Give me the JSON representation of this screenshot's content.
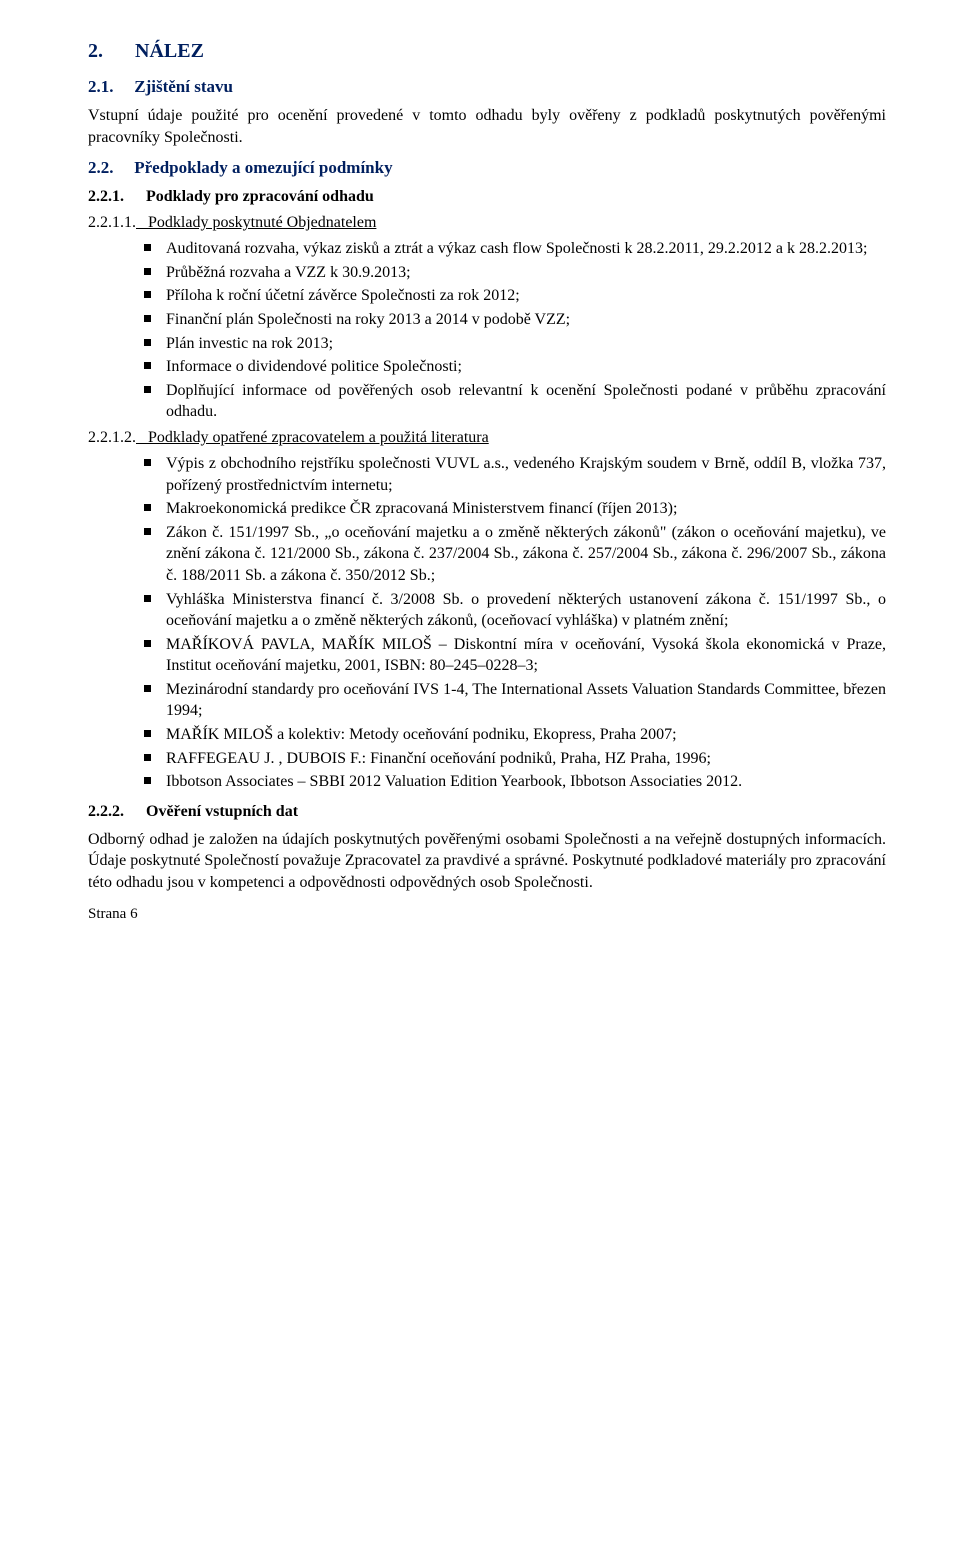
{
  "colors": {
    "heading_navy": "#001f5f",
    "body_text": "#000000",
    "background": "#ffffff",
    "bullet": "#000000"
  },
  "typography": {
    "body_fontsize_pt": 12,
    "h1_fontsize_pt": 15,
    "h2_fontsize_pt": 13,
    "font_family": "Garamond/serif"
  },
  "s2": {
    "num": "2.",
    "title": "NÁLEZ"
  },
  "s21": {
    "num": "2.1.",
    "title": "Zjištění stavu",
    "para": "Vstupní údaje použité pro ocenění provedené v tomto odhadu byly ověřeny z podkladů poskytnutých pověřenými pracovníky Společnosti."
  },
  "s22": {
    "num": "2.2.",
    "title": "Předpoklady a omezující podmínky"
  },
  "s221": {
    "num": "2.2.1.",
    "title": "Podklady pro zpracování odhadu"
  },
  "s2211": {
    "num": "2.2.1.1.",
    "title": "Podklady poskytnuté Objednatelem",
    "items": [
      "Auditovaná rozvaha, výkaz zisků a ztrát a výkaz cash flow Společnosti k 28.2.2011, 29.2.2012 a k 28.2.2013;",
      "Průběžná rozvaha a VZZ k 30.9.2013;",
      "Příloha k roční účetní závěrce Společnosti za rok 2012;",
      "Finanční plán Společnosti na roky 2013 a 2014 v podobě VZZ;",
      "Plán investic na rok 2013;",
      "Informace o dividendové politice Společnosti;",
      "Doplňující informace od pověřených osob relevantní k ocenění Společnosti podané v průběhu zpracování odhadu."
    ]
  },
  "s2212": {
    "num": "2.2.1.2.",
    "title": "Podklady opatřené zpracovatelem a použitá literatura",
    "items": [
      "Výpis z obchodního rejstříku společnosti VUVL a.s., vedeného Krajským soudem v Brně, oddíl B, vložka 737, pořízený prostřednictvím internetu;",
      "Makroekonomická predikce ČR zpracovaná Ministerstvem financí (říjen 2013);",
      "Zákon č. 151/1997 Sb., „o oceňování majetku a o změně některých zákonů\" (zákon o oceňování majetku), ve znění zákona č. 121/2000 Sb., zákona č. 237/2004 Sb., zákona č. 257/2004 Sb., zákona č. 296/2007 Sb., zákona č. 188/2011 Sb. a zákona č. 350/2012 Sb.;",
      "Vyhláška Ministerstva financí č. 3/2008 Sb. o provedení některých ustanovení zákona č. 151/1997 Sb., o oceňování majetku a o změně některých zákonů, (oceňovací vyhláška) v platném znění;",
      "MAŘÍKOVÁ PAVLA, MAŘÍK MILOŠ – Diskontní míra v oceňování, Vysoká škola ekonomická v Praze, Institut oceňování majetku, 2001, ISBN: 80–245–0228–3;",
      "Mezinárodní standardy pro oceňování IVS 1-4, The International Assets Valuation Standards Committee, březen 1994;",
      "MAŘÍK MILOŠ a kolektiv: Metody oceňování podniku, Ekopress, Praha 2007;",
      "RAFFEGEAU J. , DUBOIS F.: Finanční oceňování  podniků, Praha, HZ Praha, 1996;",
      "Ibbotson Associates – SBBI 2012 Valuation Edition Yearbook, Ibbotson Associaties 2012."
    ]
  },
  "s222": {
    "num": "2.2.2.",
    "title": "Ověření vstupních dat",
    "para": "Odborný odhad je založen na údajích poskytnutých pověřenými osobami Společnosti a na veřejně dostupných informacích. Údaje poskytnuté Společností považuje Zpracovatel za pravdivé a správné. Poskytnuté podkladové materiály pro zpracování této odhadu jsou v kompetenci a odpovědnosti odpovědných osob Společnosti."
  },
  "footer": {
    "text": "Strana 6"
  }
}
